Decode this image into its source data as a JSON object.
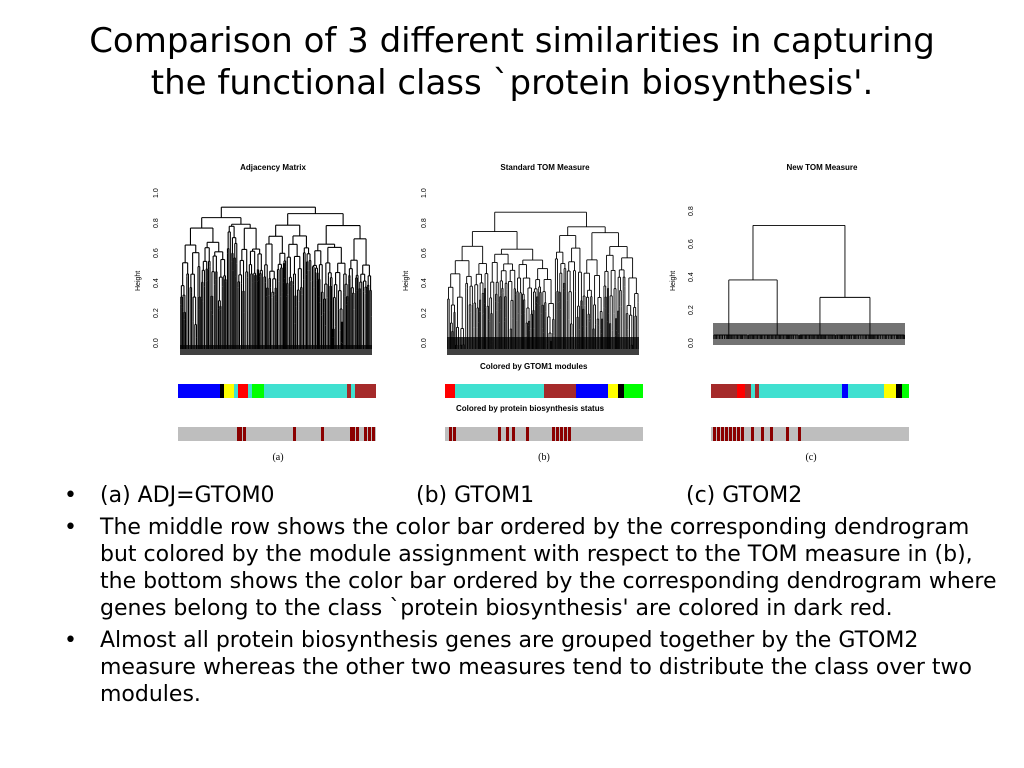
{
  "slide": {
    "title_line1": "Comparison of 3 different similarities in capturing",
    "title_line2": "the functional class `protein biosynthesis'."
  },
  "panels": [
    {
      "title": "Adjacency Matrix",
      "ylabel": "Height",
      "yticks": [
        "0.0",
        "0.2",
        "0.4",
        "0.6",
        "0.8",
        "1.0"
      ],
      "sublabel": "(a)"
    },
    {
      "title": "Standard TOM Measure",
      "ylabel": "Height",
      "yticks": [
        "0.0",
        "0.2",
        "0.4",
        "0.6",
        "0.8",
        "1.0"
      ],
      "sublabel": "(b)",
      "caption_middle": "Colored by GTOM1 modules",
      "caption_bottom": "Colored by protein biosynthesis status"
    },
    {
      "title": "New TOM Measure",
      "ylabel": "Height",
      "yticks": [
        "0.0",
        "0.2",
        "0.4",
        "0.6",
        "0.8"
      ],
      "sublabel": "(c)"
    }
  ],
  "colors": {
    "turquoise": "#40e0d0",
    "blue": "#0000ff",
    "brown": "#a52a2a",
    "red": "#ff0000",
    "yellow": "#ffff00",
    "green": "#00ff00",
    "black": "#000000",
    "grey": "#bebebe",
    "darkred": "#8b0000"
  },
  "bullets": {
    "caption": {
      "a": "(a) ADJ=GTOM0",
      "b": "(b) GTOM1",
      "c": "(c) GTOM2"
    },
    "item2": "The middle row shows the color bar ordered by the corresponding dendrogram but colored by the module assignment with respect to the TOM measure in (b), the bottom shows the color bar ordered by the corresponding dendrogram where genes belong to the class `protein biosynthesis' are colored in dark red.",
    "item3": "Almost all protein biosynthesis genes are grouped together by the GTOM2 measure whereas the other two measures tend to distribute the class over two modules.",
    "bullet_glyph": "•"
  }
}
